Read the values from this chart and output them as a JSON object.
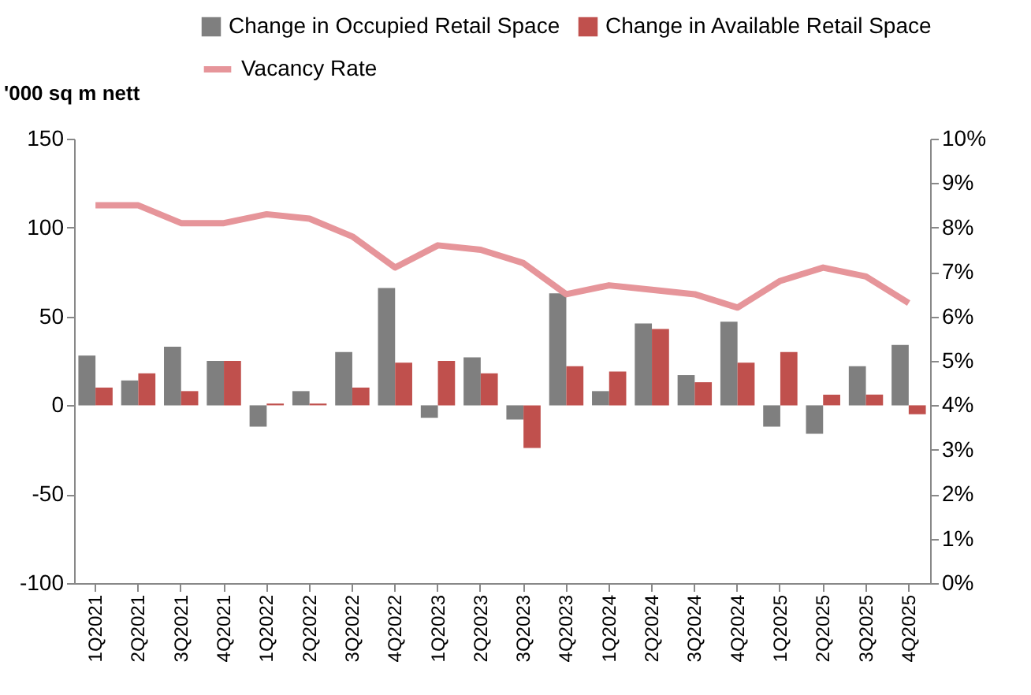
{
  "chart_data": {
    "type": "bar",
    "ylabel": "'000 sq m nett",
    "categories": [
      "1Q2021",
      "2Q2021",
      "3Q2021",
      "4Q2021",
      "1Q2022",
      "2Q2022",
      "3Q2022",
      "4Q2022",
      "1Q2023",
      "2Q2023",
      "3Q2023",
      "4Q2023",
      "1Q2024",
      "2Q2024",
      "3Q2024",
      "4Q2024",
      "1Q2025",
      "2Q2025",
      "3Q2025",
      "4Q2025"
    ],
    "series": [
      {
        "name": "Change in Occupied Retail Space",
        "color": "#7f7f7f",
        "values": [
          28,
          14,
          33,
          25,
          -12,
          8,
          30,
          66,
          -7,
          27,
          -8,
          63,
          8,
          46,
          17,
          47,
          -12,
          -16,
          22,
          34
        ]
      },
      {
        "name": "Change in Available Retail Space",
        "color": "#c0504d",
        "values": [
          10,
          18,
          8,
          25,
          1,
          1,
          10,
          24,
          25,
          18,
          -24,
          22,
          19,
          43,
          13,
          24,
          30,
          6,
          6,
          -5
        ]
      },
      {
        "name": "Vacancy Rate",
        "type": "line",
        "axis": "y2",
        "color": "#e6959a",
        "values": [
          8.5,
          8.5,
          8.1,
          8.1,
          8.3,
          8.2,
          7.8,
          7.1,
          7.6,
          7.5,
          7.2,
          6.5,
          6.7,
          6.6,
          6.5,
          6.2,
          6.8,
          7.1,
          6.9,
          6.3
        ]
      }
    ],
    "ylim": [
      -100,
      150
    ],
    "yticks": [
      -100,
      -50,
      0,
      50,
      100,
      150
    ],
    "y2lim": [
      0,
      10
    ],
    "y2ticks": [
      {
        "value": 0,
        "label": "0%"
      },
      {
        "value": 1,
        "label": "1%"
      },
      {
        "value": 2,
        "label": "2%"
      },
      {
        "value": 3,
        "label": "3%"
      },
      {
        "value": 4,
        "label": "4%"
      },
      {
        "value": 5,
        "label": "5%"
      },
      {
        "value": 6,
        "label": "6%"
      },
      {
        "value": 7,
        "label": "7%"
      },
      {
        "value": 8,
        "label": "8%"
      },
      {
        "value": 9,
        "label": "9%"
      },
      {
        "value": 10,
        "label": "10%"
      }
    ],
    "grid": false,
    "legend": "top",
    "marker": "none",
    "line_style": "solid"
  }
}
